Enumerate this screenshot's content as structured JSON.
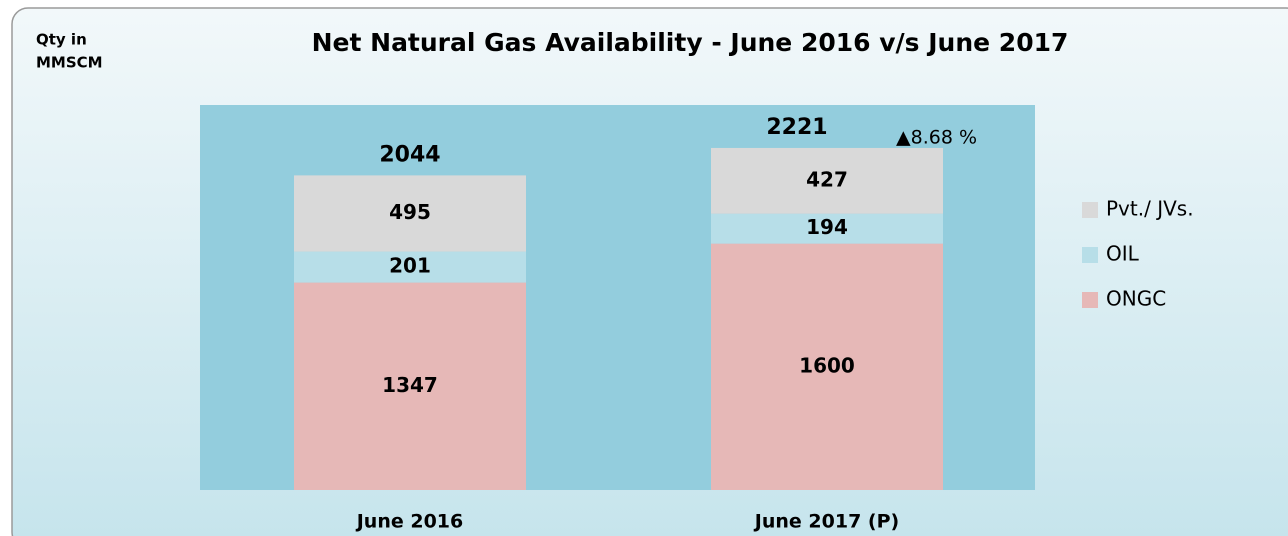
{
  "chart_data": {
    "type": "stacked_bar",
    "title": "Net Natural Gas Availability - June 2016 v/s June 2017",
    "y_label": [
      "Qty in",
      "MMSCM"
    ],
    "categories": [
      "June 2016",
      "June 2017 (P)"
    ],
    "series": [
      {
        "name": "ONGC",
        "color": "#e6b8b7",
        "values": [
          1347,
          1600
        ]
      },
      {
        "name": "OIL",
        "color": "#b7dee8",
        "values": [
          201,
          194
        ]
      },
      {
        "name": "Pvt./ JVs.",
        "color": "#d9d9d9",
        "values": [
          495,
          427
        ]
      }
    ],
    "totals": [
      2044,
      2221
    ],
    "annotation": "▲8.68 %",
    "ylim": [
      0,
      2500
    ],
    "plot_color": "#93cddd"
  }
}
